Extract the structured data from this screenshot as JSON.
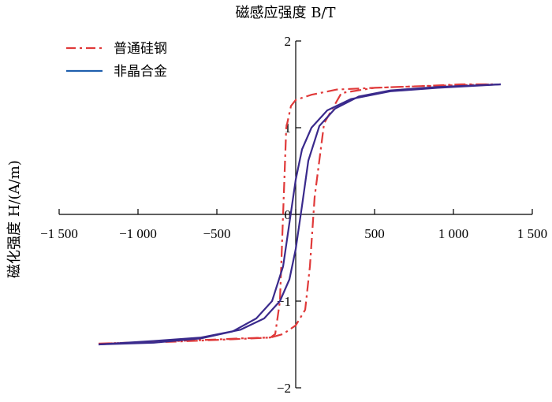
{
  "chart_data": {
    "type": "line",
    "title": "磁感应强度 B/T",
    "ylabel": "磁化强度 H/(A/m)",
    "xlabel": "",
    "xlim": [
      -1500,
      1500
    ],
    "ylim": [
      -2,
      2
    ],
    "x_ticks": [
      {
        "value": -1500,
        "label": "−1 500"
      },
      {
        "value": -1000,
        "label": "−1 000"
      },
      {
        "value": -500,
        "label": "−500"
      },
      {
        "value": 0,
        "label": "0"
      },
      {
        "value": 500,
        "label": "500"
      },
      {
        "value": 1000,
        "label": "1 000"
      },
      {
        "value": 1500,
        "label": "1 500"
      }
    ],
    "y_ticks": [
      {
        "value": 2,
        "label": "2"
      },
      {
        "value": 1,
        "label": "1"
      },
      {
        "value": 0,
        "label": "0"
      },
      {
        "value": -1,
        "label": "−1"
      },
      {
        "value": -2,
        "label": "−2"
      }
    ],
    "legend_position": "top-left",
    "series": [
      {
        "name": "普通硅钢",
        "color": "#e03a3a",
        "style": "dash-dot",
        "points": [
          [
            -1250,
            -1.49
          ],
          [
            -900,
            -1.47
          ],
          [
            -600,
            -1.45
          ],
          [
            -350,
            -1.43
          ],
          [
            -160,
            -1.42
          ],
          [
            -130,
            -1.38
          ],
          [
            -100,
            -1.0
          ],
          [
            -80,
            0.0
          ],
          [
            -60,
            1.0
          ],
          [
            -30,
            1.25
          ],
          [
            0,
            1.32
          ],
          [
            100,
            1.38
          ],
          [
            260,
            1.44
          ],
          [
            500,
            1.46
          ],
          [
            800,
            1.48
          ],
          [
            1050,
            1.5
          ],
          [
            1250,
            1.5
          ],
          [
            800,
            1.48
          ],
          [
            500,
            1.46
          ],
          [
            290,
            1.4
          ],
          [
            180,
            1.05
          ],
          [
            120,
            0.2
          ],
          [
            90,
            -0.6
          ],
          [
            60,
            -1.1
          ],
          [
            0,
            -1.28
          ],
          [
            -80,
            -1.38
          ],
          [
            -160,
            -1.42
          ],
          [
            -400,
            -1.44
          ],
          [
            -800,
            -1.47
          ],
          [
            -1250,
            -1.49
          ]
        ]
      },
      {
        "name": "非晶合金",
        "color": "#3a2a8c",
        "style": "solid",
        "points_lower": [
          [
            -1250,
            -1.5
          ],
          [
            -900,
            -1.48
          ],
          [
            -600,
            -1.43
          ],
          [
            -400,
            -1.35
          ],
          [
            -250,
            -1.2
          ],
          [
            -150,
            -1.0
          ],
          [
            -80,
            -0.6
          ],
          [
            -40,
            -0.1
          ],
          [
            0,
            0.4
          ],
          [
            40,
            0.75
          ],
          [
            100,
            1.0
          ],
          [
            200,
            1.2
          ],
          [
            350,
            1.33
          ],
          [
            600,
            1.42
          ],
          [
            900,
            1.46
          ],
          [
            1300,
            1.5
          ]
        ],
        "points_upper": [
          [
            1300,
            1.5
          ],
          [
            900,
            1.47
          ],
          [
            600,
            1.43
          ],
          [
            400,
            1.36
          ],
          [
            250,
            1.22
          ],
          [
            150,
            1.02
          ],
          [
            80,
            0.62
          ],
          [
            40,
            0.1
          ],
          [
            0,
            -0.4
          ],
          [
            -40,
            -0.75
          ],
          [
            -100,
            -1.0
          ],
          [
            -200,
            -1.2
          ],
          [
            -350,
            -1.33
          ],
          [
            -600,
            -1.42
          ],
          [
            -900,
            -1.46
          ],
          [
            -1250,
            -1.5
          ]
        ]
      }
    ]
  }
}
